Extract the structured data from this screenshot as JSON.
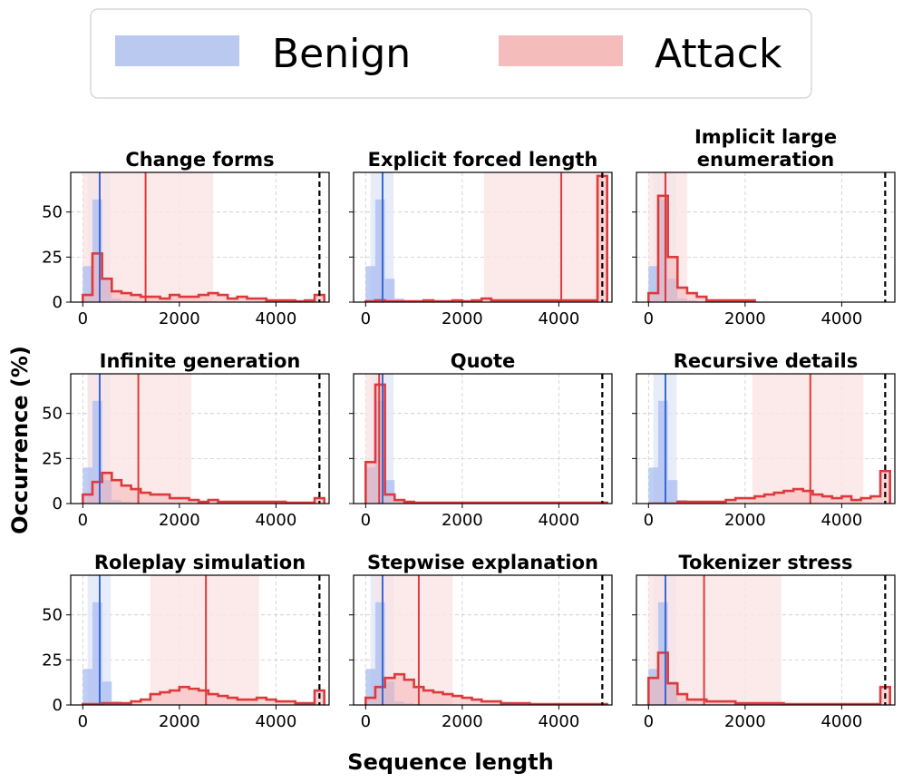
{
  "legend": {
    "position": "top-center",
    "entries": [
      {
        "label": "Benign",
        "color": "#b9c9f0"
      },
      {
        "label": "Attack",
        "color": "#f5bcbc"
      }
    ]
  },
  "axes_common": {
    "xlabel": "Sequence length",
    "ylabel": "Occurrence (%)",
    "x_ticks": [
      "0",
      "2000",
      "4000"
    ],
    "y_ticks": [
      "0",
      "25",
      "50"
    ]
  },
  "colors": {
    "benign_line": "#3a66d4",
    "benign_fill": "#a9bdf0",
    "benign_band": "#dfe6f7",
    "attack_line": "#dd3a3c",
    "attack_fill": "#f5b4b6",
    "attack_band": "#fbe5e5",
    "max_line": "#000000"
  },
  "chart_data": {
    "type": "histogram-grid",
    "bin_width": 200,
    "xlim": [
      -250,
      5100
    ],
    "ylim": [
      0,
      72
    ],
    "max_length_marker": 4900,
    "benign": {
      "values": [
        20,
        57,
        13,
        2,
        1,
        0.5,
        0.5,
        0.5,
        0.3,
        0.3,
        0.3,
        0.2
      ],
      "median": 350,
      "band": [
        100,
        580
      ]
    },
    "panels": [
      {
        "title": "Change forms",
        "attack_values": [
          4,
          27,
          13,
          6,
          5,
          4,
          3,
          3,
          2,
          4,
          3,
          3,
          4,
          5,
          4,
          2,
          3,
          2,
          2,
          1,
          1,
          1,
          0.5,
          1,
          4
        ],
        "attack_median": 1300,
        "attack_band": [
          0,
          2700
        ]
      },
      {
        "title": "Explicit forced length",
        "attack_values": [
          0.5,
          1,
          0.5,
          0.5,
          0.5,
          0.5,
          1,
          0.5,
          0.5,
          1,
          0.5,
          1,
          2,
          1,
          1,
          1,
          1,
          1,
          1,
          1,
          1,
          1,
          1,
          1,
          70
        ],
        "attack_median": 4050,
        "attack_band": [
          2450,
          4900
        ]
      },
      {
        "title": "Implicit large enumeration",
        "attack_values": [
          5,
          59,
          25,
          8,
          5,
          3,
          1,
          1,
          1,
          1,
          1
        ],
        "attack_median": 350,
        "attack_band": [
          0,
          800
        ]
      },
      {
        "title": "Infinite generation",
        "attack_values": [
          5,
          12,
          17,
          13,
          10,
          8,
          6,
          5,
          5,
          3,
          3,
          2,
          1,
          2,
          1,
          1,
          1,
          1,
          1,
          1,
          1,
          0.5,
          0.5,
          0.5,
          3
        ],
        "attack_median": 1150,
        "attack_band": [
          100,
          2250
        ]
      },
      {
        "title": "Quote",
        "attack_values": [
          23,
          66,
          5,
          2,
          1,
          0.5,
          0.5,
          0.5,
          0.5,
          0.5,
          0.5,
          0.5,
          0.5,
          0.5,
          0.5,
          0.5,
          0.5,
          0.5,
          0.5,
          0.5,
          0.5,
          0.5,
          0.5,
          0.5,
          0.5
        ],
        "attack_median": 280,
        "attack_band": [
          0,
          400
        ]
      },
      {
        "title": "Recursive details",
        "attack_values": [
          0,
          0,
          0,
          1,
          1,
          1,
          1,
          1,
          2,
          3,
          3,
          4,
          5,
          6,
          7,
          8,
          7,
          5,
          4,
          3,
          4,
          2,
          3,
          4,
          18
        ],
        "attack_median": 3350,
        "attack_band": [
          2150,
          4450
        ]
      },
      {
        "title": "Roleplay simulation",
        "attack_values": [
          0.5,
          0.5,
          1,
          1,
          1,
          2,
          3,
          6,
          7,
          8,
          10,
          9,
          8,
          6,
          5,
          4,
          3,
          3,
          4,
          3,
          2,
          2,
          1,
          1,
          8
        ],
        "attack_median": 2550,
        "attack_band": [
          1400,
          3650
        ]
      },
      {
        "title": "Stepwise explanation",
        "attack_values": [
          4,
          10,
          15,
          17,
          14,
          10,
          8,
          7,
          6,
          5,
          4,
          3,
          2,
          2,
          1,
          1,
          1,
          0.5,
          0.5,
          0.5,
          0.5,
          0.5,
          0.5,
          0.5,
          0.5
        ],
        "attack_median": 1100,
        "attack_band": [
          200,
          1800
        ]
      },
      {
        "title": "Tokenizer stress",
        "attack_values": [
          15,
          29,
          12,
          6,
          3,
          3,
          2,
          2,
          2,
          1,
          1,
          1,
          1,
          1,
          0.5,
          0.5,
          0.5,
          0.5,
          0.5,
          0.5,
          0.5,
          0.5,
          0.5,
          0.5,
          10
        ],
        "attack_median": 1150,
        "attack_band": [
          0,
          2750
        ]
      }
    ]
  }
}
